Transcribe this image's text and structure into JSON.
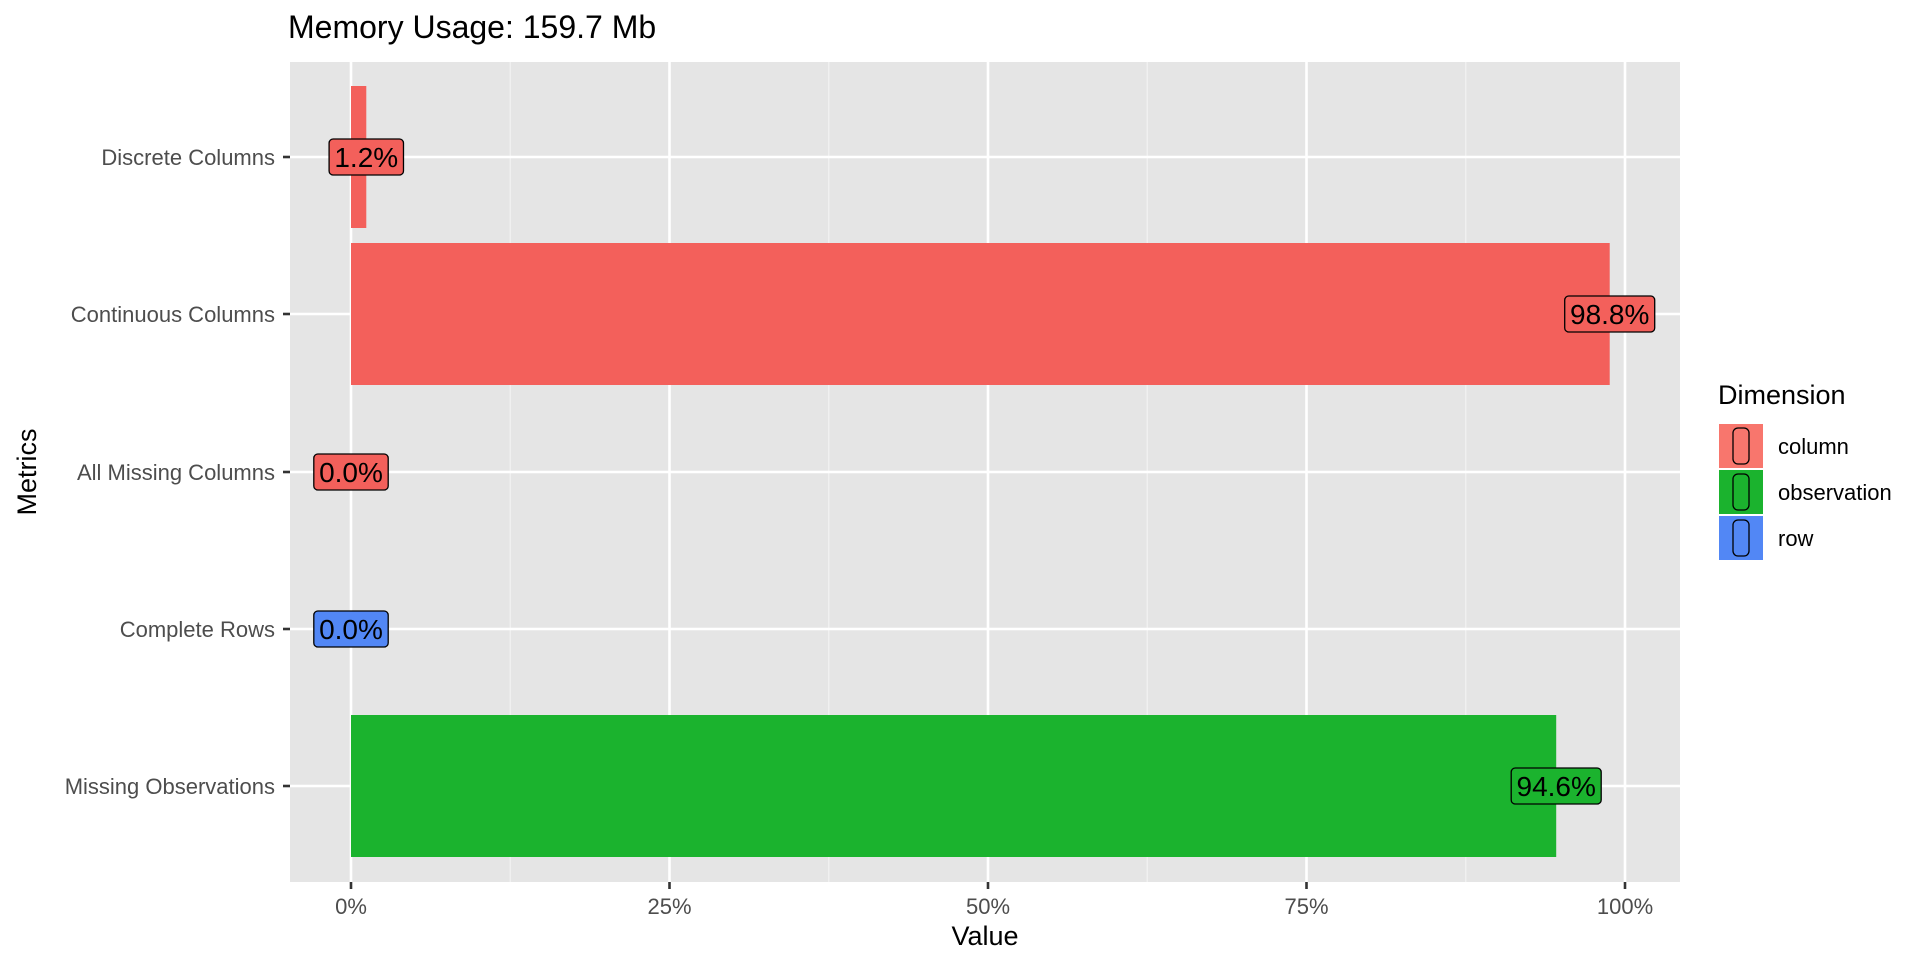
{
  "chart_data": {
    "type": "bar",
    "orientation": "horizontal",
    "title": "Memory Usage: 159.7 Mb",
    "xlabel": "Value",
    "ylabel": "Metrics",
    "xlim": [
      -0.04,
      1.035
    ],
    "x_ticks": [
      {
        "value": 0,
        "label": "0%"
      },
      {
        "value": 0.25,
        "label": "25%"
      },
      {
        "value": 0.5,
        "label": "50%"
      },
      {
        "value": 0.75,
        "label": "75%"
      },
      {
        "value": 1.0,
        "label": "100%"
      }
    ],
    "grid": true,
    "categories": [
      "Discrete Columns",
      "Continuous Columns",
      "All Missing Columns",
      "Complete Rows",
      "Missing Observations"
    ],
    "bars": [
      {
        "category": "Discrete Columns",
        "value": 0.012,
        "label": "1.2%",
        "dimension": "column"
      },
      {
        "category": "Continuous Columns",
        "value": 0.988,
        "label": "98.8%",
        "dimension": "column"
      },
      {
        "category": "All Missing Columns",
        "value": 0.0,
        "label": "0.0%",
        "dimension": "column"
      },
      {
        "category": "Complete Rows",
        "value": 0.0,
        "label": "0.0%",
        "dimension": "row"
      },
      {
        "category": "Missing Observations",
        "value": 0.946,
        "label": "94.6%",
        "dimension": "observation"
      }
    ],
    "legend": {
      "title": "Dimension",
      "position": "right",
      "entries": [
        {
          "name": "column",
          "color": "#F8766D"
        },
        {
          "name": "observation",
          "color": "#1BB32E"
        },
        {
          "name": "row",
          "color": "#5287F5"
        }
      ]
    },
    "colors": {
      "column": "#F3605B",
      "observation": "#1BB32E",
      "row": "#5287F5",
      "panel": "#E5E5E5",
      "grid": "#FFFFFF"
    }
  }
}
